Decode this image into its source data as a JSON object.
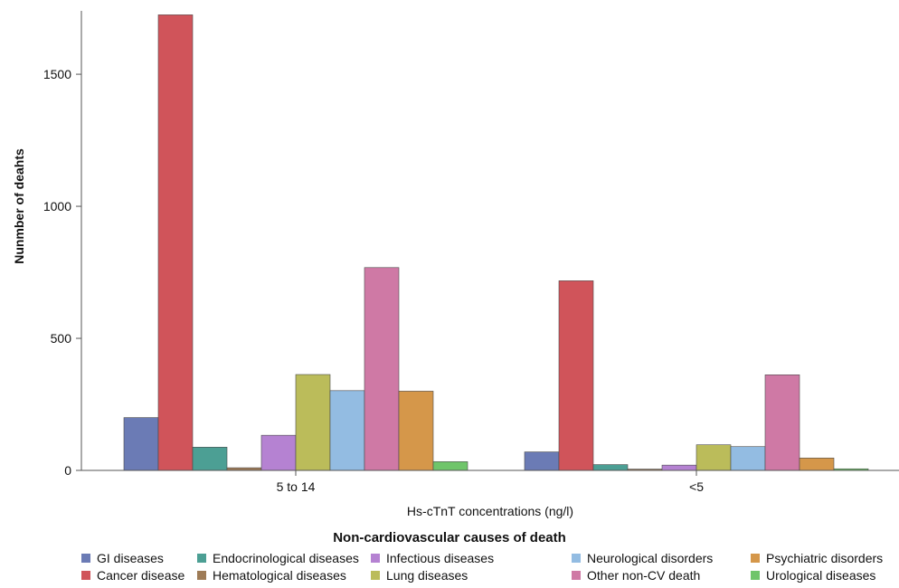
{
  "chart_data": {
    "type": "bar",
    "categories": [
      "5 to 14",
      "<5"
    ],
    "xlabel": "Hs-cTnT concentrations (ng/l)",
    "ylabel": "Nunmber of deahts",
    "ylim": [
      0,
      1740
    ],
    "yticks": [
      0,
      500,
      1000,
      1500
    ],
    "grid": false,
    "legend_title": "Non-cardiovascular causes of death",
    "legend_position": "bottom",
    "series": [
      {
        "name": "GI diseases",
        "color": "#6b7bb5",
        "values": [
          200,
          70
        ]
      },
      {
        "name": "Cancer disease",
        "color": "#d0545a",
        "values": [
          1725,
          718
        ]
      },
      {
        "name": "Endocrinological diseases",
        "color": "#4c9f94",
        "values": [
          88,
          22
        ]
      },
      {
        "name": "Hematological diseases",
        "color": "#9e7b56",
        "values": [
          10,
          5
        ]
      },
      {
        "name": "Infectious diseases",
        "color": "#b582d2",
        "values": [
          133,
          20
        ]
      },
      {
        "name": "Lung diseases",
        "color": "#bbbc5a",
        "values": [
          363,
          97
        ]
      },
      {
        "name": "Neurological disorders",
        "color": "#93bce2",
        "values": [
          302,
          90
        ]
      },
      {
        "name": "Other non-CV death",
        "color": "#cf79a5",
        "values": [
          768,
          362
        ]
      },
      {
        "name": "Psychiatric disorders",
        "color": "#d5974a",
        "values": [
          300,
          47
        ]
      },
      {
        "name": "Urological diseases",
        "color": "#6fc56a",
        "values": [
          33,
          6
        ]
      }
    ]
  }
}
